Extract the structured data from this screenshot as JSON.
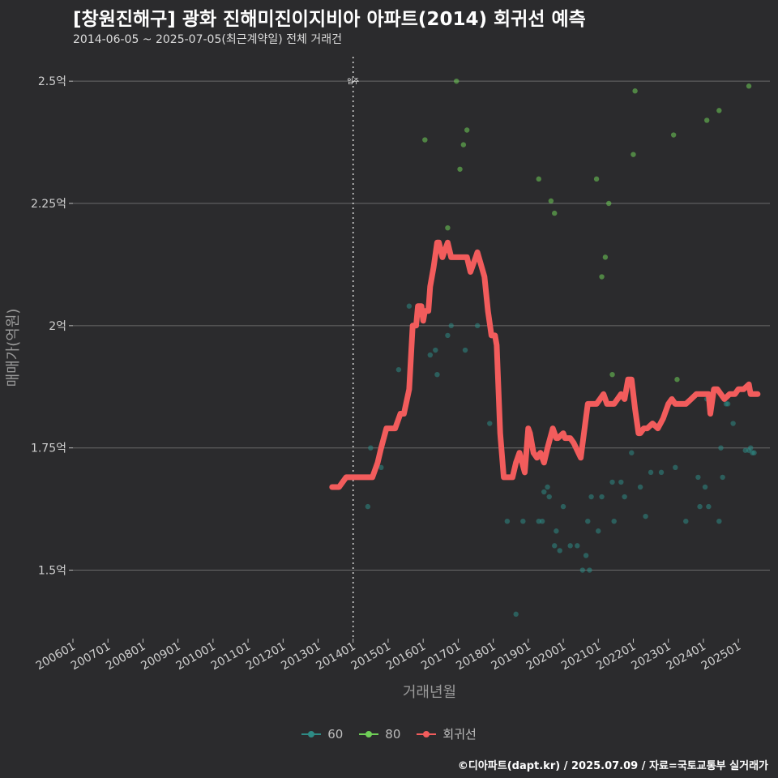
{
  "title": "[창원진해구] 광화 진해미진이지비아 아파트(2014) 회귀선 예측",
  "subtitle": "2014-06-05 ~ 2025-07-05(최근계약일) 전체 거래건",
  "credit": "©디아파트(dapt.kr) / 2025.07.09 / 자료=국토교통부 실거래가",
  "colors": {
    "background": "#2b2b2d",
    "grid": "#6a6a6a",
    "series_60": "#2e8b85",
    "series_80": "#6fcf57",
    "regression": "#f25c5c"
  },
  "chart_data": {
    "type": "scatter",
    "xlabel": "거래년월",
    "ylabel": "매매가(억원)",
    "ylim": [
      1.36,
      2.55
    ],
    "xlim": [
      2006.0,
      2025.9
    ],
    "x_tick_labels": [
      "200601",
      "200701",
      "200801",
      "200901",
      "201001",
      "201101",
      "201201",
      "201301",
      "201401",
      "201501",
      "201601",
      "201701",
      "201801",
      "201901",
      "202001",
      "202101",
      "202201",
      "202301",
      "202401",
      "202501"
    ],
    "y_ticks": [
      {
        "value": 1.5,
        "label": "1.5억"
      },
      {
        "value": 1.75,
        "label": "1.75억"
      },
      {
        "value": 2.0,
        "label": "2억"
      },
      {
        "value": 2.25,
        "label": "2.25억"
      },
      {
        "value": 2.5,
        "label": "2.5억"
      }
    ],
    "vline": {
      "x": 2014.0,
      "label": "입주"
    },
    "legend": [
      "60",
      "80",
      "회귀선"
    ],
    "series": [
      {
        "name": "60",
        "x": [
          2014.42,
          2014.5,
          2014.8,
          2015.3,
          2015.6,
          2016.2,
          2016.35,
          2016.4,
          2016.7,
          2016.8,
          2017.2,
          2017.55,
          2017.9,
          2018.4,
          2018.65,
          2018.85,
          2019.3,
          2019.4,
          2019.45,
          2019.55,
          2019.6,
          2019.75,
          2019.8,
          2019.9,
          2020.0,
          2020.2,
          2020.4,
          2020.55,
          2020.65,
          2020.7,
          2020.75,
          2020.8,
          2021.0,
          2021.1,
          2021.4,
          2021.45,
          2021.65,
          2021.75,
          2021.95,
          2022.2,
          2022.35,
          2022.5,
          2022.8,
          2023.2,
          2023.5,
          2023.85,
          2023.9,
          2024.05,
          2024.1,
          2024.15,
          2024.45,
          2024.5,
          2024.55,
          2024.65,
          2024.7,
          2024.85,
          2025.2,
          2025.3,
          2025.35,
          2025.4,
          2025.45
        ],
        "y": [
          1.63,
          1.75,
          1.71,
          1.91,
          2.04,
          1.94,
          1.95,
          1.9,
          1.98,
          2.0,
          1.95,
          2.0,
          1.8,
          1.6,
          1.41,
          1.6,
          1.6,
          1.6,
          1.66,
          1.67,
          1.65,
          1.55,
          1.58,
          1.54,
          1.63,
          1.55,
          1.55,
          1.5,
          1.53,
          1.6,
          1.5,
          1.65,
          1.58,
          1.65,
          1.68,
          1.6,
          1.68,
          1.65,
          1.74,
          1.67,
          1.61,
          1.7,
          1.7,
          1.71,
          1.6,
          1.69,
          1.63,
          1.67,
          1.85,
          1.63,
          1.6,
          1.75,
          1.69,
          1.84,
          1.84,
          1.8,
          1.745,
          1.745,
          1.75,
          1.74,
          1.74
        ]
      },
      {
        "name": "80",
        "x": [
          2016.05,
          2016.7,
          2016.95,
          2017.05,
          2017.15,
          2017.25,
          2019.3,
          2019.65,
          2019.75,
          2020.95,
          2021.1,
          2021.2,
          2021.3,
          2021.4,
          2021.45,
          2022.0,
          2022.05,
          2023.15,
          2023.25,
          2024.1,
          2024.45,
          2025.3
        ],
        "y": [
          2.38,
          2.2,
          2.5,
          2.32,
          2.37,
          2.4,
          2.3,
          2.255,
          2.23,
          2.3,
          2.1,
          2.14,
          2.25,
          1.9,
          1.84,
          2.35,
          2.48,
          2.39,
          1.89,
          2.42,
          2.44,
          2.49
        ]
      }
    ],
    "regression": {
      "name": "회귀선",
      "x": [
        2013.4,
        2013.6,
        2013.8,
        2014.0,
        2014.2,
        2014.4,
        2014.55,
        2014.7,
        2014.8,
        2014.95,
        2015.05,
        2015.2,
        2015.35,
        2015.45,
        2015.6,
        2015.7,
        2015.8,
        2015.85,
        2015.95,
        2016.0,
        2016.05,
        2016.15,
        2016.2,
        2016.3,
        2016.4,
        2016.45,
        2016.55,
        2016.7,
        2016.8,
        2016.95,
        2017.05,
        2017.15,
        2017.25,
        2017.35,
        2017.5,
        2017.55,
        2017.75,
        2017.85,
        2017.95,
        2018.05,
        2018.1,
        2018.2,
        2018.3,
        2018.45,
        2018.55,
        2018.65,
        2018.75,
        2018.9,
        2019.0,
        2019.05,
        2019.15,
        2019.25,
        2019.35,
        2019.45,
        2019.55,
        2019.7,
        2019.8,
        2019.85,
        2020.0,
        2020.05,
        2020.2,
        2020.3,
        2020.5,
        2020.7,
        2020.8,
        2020.9,
        2020.95,
        2021.05,
        2021.15,
        2021.25,
        2021.35,
        2021.45,
        2021.55,
        2021.65,
        2021.75,
        2021.85,
        2021.95,
        2022.05,
        2022.15,
        2022.2,
        2022.3,
        2022.4,
        2022.55,
        2022.7,
        2022.85,
        2023.0,
        2023.1,
        2023.2,
        2023.35,
        2023.5,
        2023.65,
        2023.8,
        2023.95,
        2024.05,
        2024.15,
        2024.2,
        2024.3,
        2024.4,
        2024.5,
        2024.6,
        2024.75,
        2024.9,
        2025.0,
        2025.15,
        2025.3,
        2025.35,
        2025.4,
        2025.45,
        2025.55
      ],
      "y": [
        1.67,
        1.67,
        1.69,
        1.69,
        1.69,
        1.69,
        1.69,
        1.72,
        1.75,
        1.79,
        1.79,
        1.79,
        1.82,
        1.82,
        1.87,
        2.0,
        2.0,
        2.04,
        2.04,
        2.01,
        2.03,
        2.03,
        2.08,
        2.12,
        2.17,
        2.17,
        2.14,
        2.17,
        2.14,
        2.14,
        2.14,
        2.14,
        2.14,
        2.11,
        2.14,
        2.15,
        2.1,
        2.03,
        1.98,
        1.98,
        1.96,
        1.78,
        1.69,
        1.69,
        1.69,
        1.72,
        1.74,
        1.7,
        1.79,
        1.78,
        1.74,
        1.73,
        1.74,
        1.72,
        1.75,
        1.79,
        1.77,
        1.77,
        1.78,
        1.77,
        1.77,
        1.76,
        1.73,
        1.84,
        1.84,
        1.84,
        1.84,
        1.85,
        1.86,
        1.84,
        1.84,
        1.84,
        1.85,
        1.86,
        1.85,
        1.89,
        1.89,
        1.83,
        1.78,
        1.78,
        1.79,
        1.79,
        1.8,
        1.79,
        1.81,
        1.84,
        1.85,
        1.84,
        1.84,
        1.84,
        1.85,
        1.86,
        1.86,
        1.86,
        1.86,
        1.82,
        1.87,
        1.87,
        1.86,
        1.85,
        1.86,
        1.86,
        1.87,
        1.87,
        1.88,
        1.86,
        1.86,
        1.86,
        1.86
      ]
    }
  }
}
